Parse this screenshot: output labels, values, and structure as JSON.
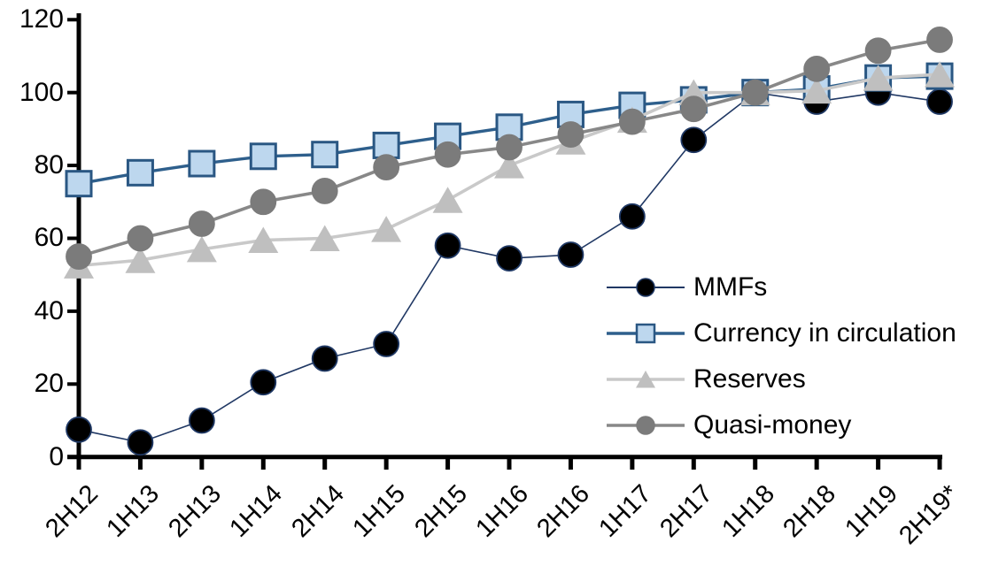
{
  "chart_data": {
    "type": "line",
    "title": "",
    "xlabel": "",
    "ylabel": "",
    "grid": false,
    "legend_position": "inside-right",
    "ylim": [
      0,
      120
    ],
    "y_ticks": [
      0,
      20,
      40,
      60,
      80,
      100,
      120
    ],
    "categories": [
      "2H12",
      "1H13",
      "2H13",
      "1H14",
      "2H14",
      "1H15",
      "2H15",
      "1H16",
      "2H16",
      "1H17",
      "2H17",
      "1H18",
      "2H18",
      "1H19",
      "2H19*"
    ],
    "series": [
      {
        "name": "MMFs",
        "marker": "circle",
        "marker_fill": "#000000",
        "marker_stroke": "#1f3864",
        "line_color": "#203864",
        "line_width": 1.6,
        "values": [
          7.5,
          4,
          10,
          20.5,
          27,
          31,
          58,
          54.5,
          55.5,
          66,
          87,
          100,
          97.5,
          100,
          97.5
        ]
      },
      {
        "name": "Currency in circulation",
        "marker": "square",
        "marker_fill": "#bdd7ee",
        "marker_stroke": "#2a5783",
        "line_color": "#2e5f8c",
        "line_width": 3.4,
        "values": [
          75,
          78,
          80.5,
          82.5,
          83,
          85.5,
          88,
          90.5,
          94,
          96.5,
          98,
          100,
          101,
          104,
          104.5
        ]
      },
      {
        "name": "Reserves",
        "marker": "triangle",
        "marker_fill": "#bfbfbf",
        "marker_stroke": "#bfbfbf",
        "line_color": "#c9c9c9",
        "line_width": 3.6,
        "values": [
          52.5,
          54,
          57,
          59.5,
          60,
          62.5,
          70.5,
          80,
          86.5,
          92.5,
          100,
          100,
          100.5,
          104,
          105
        ]
      },
      {
        "name": "Quasi-money",
        "marker": "circle",
        "marker_fill": "#7b7b7b",
        "marker_stroke": "#7b7b7b",
        "line_color": "#888888",
        "line_width": 3.6,
        "values": [
          55,
          60,
          64,
          70,
          73,
          79.5,
          83,
          85,
          88.5,
          92,
          95.5,
          100,
          106.5,
          111.5,
          114.5
        ]
      }
    ]
  },
  "colors": {
    "axis": "#000000",
    "text": "#000000",
    "background": "#ffffff"
  }
}
